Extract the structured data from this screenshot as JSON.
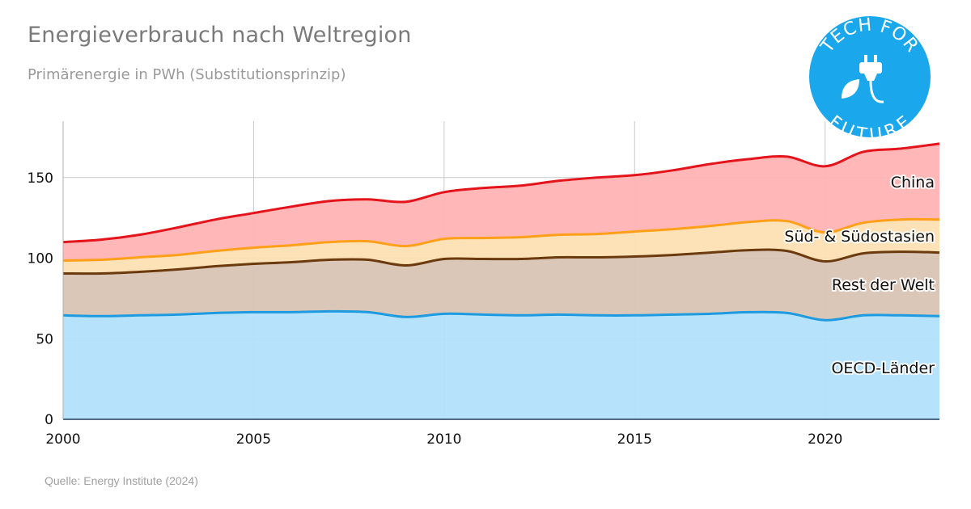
{
  "header": {
    "title": "Energieverbrauch nach Weltregion",
    "subtitle": "Primärenergie in PWh (Substitutionsprinzip)"
  },
  "footer": {
    "source": "Quelle: Energy Institute (2024)"
  },
  "logo": {
    "top_text": "TECH FOR",
    "bottom_text": "FUTURE",
    "color": "#1aa7ec",
    "icon": "plug-leaf-icon"
  },
  "chart_data": {
    "type": "area",
    "stacked": true,
    "title": "",
    "xlabel": "",
    "ylabel": "",
    "x": [
      2000,
      2001,
      2002,
      2003,
      2004,
      2005,
      2006,
      2007,
      2008,
      2009,
      2010,
      2011,
      2012,
      2013,
      2014,
      2015,
      2016,
      2017,
      2018,
      2019,
      2020,
      2021,
      2022,
      2023
    ],
    "xlim": [
      2000,
      2023
    ],
    "ylim": [
      0,
      185
    ],
    "x_ticks": [
      "2000",
      "2005",
      "2010",
      "2015",
      "2020"
    ],
    "x_tick_values": [
      2000,
      2005,
      2010,
      2015,
      2020
    ],
    "y_ticks": [
      "0",
      "50",
      "100",
      "150"
    ],
    "y_tick_values": [
      0,
      50,
      100,
      150
    ],
    "grid": true,
    "legend": "inline-right",
    "series": [
      {
        "name": "OECD-Länder",
        "color": "#1e9be0",
        "fill": "#b3e0fb",
        "values": [
          64.5,
          64,
          64.5,
          65,
          66,
          66.5,
          66.5,
          67,
          66.5,
          63.5,
          65.5,
          65,
          64.5,
          65,
          64.5,
          64.5,
          65,
          65.5,
          66.5,
          66,
          61.5,
          64.5,
          64.5,
          64
        ]
      },
      {
        "name": "Rest der Welt",
        "color": "#6b3a0e",
        "fill": "#d8c4b3",
        "values": [
          26,
          26.5,
          27,
          28,
          29,
          30,
          31,
          32,
          32.5,
          32,
          34,
          34.5,
          35,
          35.5,
          36,
          36.5,
          37,
          38,
          38.5,
          38.5,
          36.5,
          38.5,
          39.5,
          39.5
        ]
      },
      {
        "name": "Süd- & Südostasien",
        "color": "#ff9f1a",
        "fill": "#fde0b4",
        "values": [
          8,
          8.5,
          9,
          9,
          9.5,
          10,
          10.5,
          11,
          11.5,
          12,
          12.5,
          13,
          13.5,
          14,
          14.5,
          15.5,
          16,
          16.5,
          17.5,
          18.5,
          18,
          19,
          20,
          20.5
        ]
      },
      {
        "name": "China",
        "color": "#e3141b",
        "fill": "#ffb3b3",
        "values": [
          11.5,
          12.5,
          14,
          17,
          19.5,
          21.5,
          24,
          25.5,
          26,
          27.5,
          29,
          31,
          32,
          33.5,
          35,
          35,
          36.5,
          38.5,
          39,
          40,
          41,
          44,
          44,
          47
        ]
      }
    ]
  }
}
